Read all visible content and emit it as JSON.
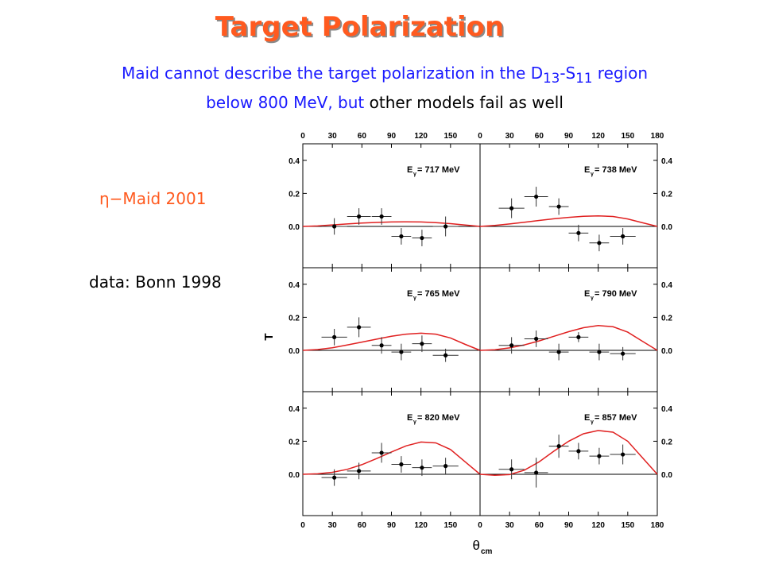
{
  "header": {
    "title": "Target Polarization",
    "line1_pre": "Maid cannot describe the target polarization in the D",
    "line1_sub1": "13",
    "line1_mid": "-S",
    "line1_sub2": "11",
    "line1_post": " region",
    "line2_blue": "below 800 MeV, but ",
    "line2_black": "other models fail as well"
  },
  "labels": {
    "maid": "η−Maid 2001",
    "data": "data: Bonn 1998"
  },
  "colors": {
    "title": "#ff5a1f",
    "blue_text": "#1a1aff",
    "maid_text": "#ff5a1f",
    "curve": "#e02020"
  },
  "chart_data": {
    "type": "scatter",
    "ylabel": "T",
    "xlabel": "θcm",
    "xlim": [
      0,
      180
    ],
    "ylim": [
      -0.25,
      0.5
    ],
    "x_ticks": [
      0,
      30,
      60,
      90,
      120,
      150,
      180
    ],
    "x_tick_labels_left": [
      "0",
      "30",
      "60",
      "90",
      "120",
      "150"
    ],
    "x_tick_labels_right": [
      "0",
      "30",
      "60",
      "90",
      "120",
      "150",
      "180"
    ],
    "y_ticks": [
      0.0,
      0.2,
      0.4
    ],
    "y_tick_labels": [
      "0.0",
      "0.2",
      "0.4"
    ],
    "energy_prefix": "E",
    "energy_sub": "γ",
    "panels": [
      {
        "label": " = 717 MeV",
        "points": [
          {
            "x": 32,
            "y": 0.0,
            "dx": 13,
            "dy": 0.05
          },
          {
            "x": 57,
            "y": 0.06,
            "dx": 12,
            "dy": 0.05
          },
          {
            "x": 80,
            "y": 0.06,
            "dx": 10,
            "dy": 0.05
          },
          {
            "x": 100,
            "y": -0.06,
            "dx": 10,
            "dy": 0.05
          },
          {
            "x": 121,
            "y": -0.07,
            "dx": 10,
            "dy": 0.05
          },
          {
            "x": 145,
            "y": 0.0,
            "dx": 13,
            "dy": 0.06
          }
        ],
        "curve": {
          "x": [
            0,
            15,
            30,
            45,
            60,
            75,
            90,
            105,
            120,
            135,
            150,
            165,
            180
          ],
          "y": [
            0,
            0.003,
            0.009,
            0.015,
            0.02,
            0.024,
            0.027,
            0.028,
            0.027,
            0.023,
            0.017,
            0.008,
            0
          ]
        }
      },
      {
        "label": " = 738 MeV",
        "points": [
          {
            "x": 32,
            "y": 0.11,
            "dx": 13,
            "dy": 0.06
          },
          {
            "x": 57,
            "y": 0.18,
            "dx": 12,
            "dy": 0.06
          },
          {
            "x": 80,
            "y": 0.12,
            "dx": 10,
            "dy": 0.05
          },
          {
            "x": 100,
            "y": -0.04,
            "dx": 10,
            "dy": 0.05
          },
          {
            "x": 121,
            "y": -0.1,
            "dx": 10,
            "dy": 0.05
          },
          {
            "x": 145,
            "y": -0.06,
            "dx": 13,
            "dy": 0.05
          }
        ],
        "curve": {
          "x": [
            0,
            15,
            30,
            45,
            60,
            75,
            90,
            105,
            120,
            135,
            150,
            165,
            180
          ],
          "y": [
            0,
            0.006,
            0.015,
            0.025,
            0.036,
            0.046,
            0.055,
            0.061,
            0.064,
            0.06,
            0.045,
            0.022,
            0
          ]
        }
      },
      {
        "label": " = 765 MeV",
        "points": [
          {
            "x": 32,
            "y": 0.08,
            "dx": 13,
            "dy": 0.05
          },
          {
            "x": 57,
            "y": 0.14,
            "dx": 12,
            "dy": 0.06
          },
          {
            "x": 80,
            "y": 0.03,
            "dx": 10,
            "dy": 0.05
          },
          {
            "x": 100,
            "y": -0.01,
            "dx": 10,
            "dy": 0.05
          },
          {
            "x": 121,
            "y": 0.04,
            "dx": 10,
            "dy": 0.05
          },
          {
            "x": 145,
            "y": -0.03,
            "dx": 13,
            "dy": 0.04
          }
        ],
        "curve": {
          "x": [
            0,
            15,
            30,
            45,
            60,
            75,
            90,
            105,
            120,
            135,
            150,
            165,
            180
          ],
          "y": [
            0,
            0.005,
            0.016,
            0.032,
            0.05,
            0.068,
            0.085,
            0.098,
            0.104,
            0.098,
            0.075,
            0.036,
            0
          ]
        }
      },
      {
        "label": " = 790 MeV",
        "points": [
          {
            "x": 32,
            "y": 0.03,
            "dx": 13,
            "dy": 0.05
          },
          {
            "x": 57,
            "y": 0.07,
            "dx": 12,
            "dy": 0.05
          },
          {
            "x": 80,
            "y": -0.01,
            "dx": 10,
            "dy": 0.05
          },
          {
            "x": 100,
            "y": 0.08,
            "dx": 10,
            "dy": 0.03
          },
          {
            "x": 121,
            "y": -0.01,
            "dx": 10,
            "dy": 0.05
          },
          {
            "x": 145,
            "y": -0.02,
            "dx": 13,
            "dy": 0.04
          }
        ],
        "curve": {
          "x": [
            0,
            15,
            30,
            45,
            60,
            75,
            90,
            105,
            120,
            135,
            150,
            165,
            180
          ],
          "y": [
            0,
            0.004,
            0.015,
            0.033,
            0.057,
            0.085,
            0.113,
            0.137,
            0.15,
            0.143,
            0.11,
            0.055,
            0
          ]
        }
      },
      {
        "label": " = 820 MeV",
        "points": [
          {
            "x": 32,
            "y": -0.02,
            "dx": 13,
            "dy": 0.05
          },
          {
            "x": 57,
            "y": 0.02,
            "dx": 12,
            "dy": 0.05
          },
          {
            "x": 80,
            "y": 0.13,
            "dx": 10,
            "dy": 0.06
          },
          {
            "x": 100,
            "y": 0.06,
            "dx": 10,
            "dy": 0.05
          },
          {
            "x": 121,
            "y": 0.04,
            "dx": 10,
            "dy": 0.05
          },
          {
            "x": 145,
            "y": 0.05,
            "dx": 13,
            "dy": 0.05
          }
        ],
        "curve": {
          "x": [
            0,
            15,
            30,
            45,
            60,
            75,
            90,
            105,
            120,
            135,
            150,
            165,
            180
          ],
          "y": [
            0,
            0.003,
            0.012,
            0.03,
            0.058,
            0.095,
            0.135,
            0.172,
            0.195,
            0.19,
            0.15,
            0.075,
            0
          ]
        }
      },
      {
        "label": " = 857 MeV",
        "points": [
          {
            "x": 32,
            "y": 0.03,
            "dx": 13,
            "dy": 0.06
          },
          {
            "x": 57,
            "y": 0.01,
            "dx": 12,
            "dy": 0.09
          },
          {
            "x": 80,
            "y": 0.17,
            "dx": 10,
            "dy": 0.07
          },
          {
            "x": 100,
            "y": 0.14,
            "dx": 10,
            "dy": 0.05
          },
          {
            "x": 121,
            "y": 0.11,
            "dx": 10,
            "dy": 0.05
          },
          {
            "x": 145,
            "y": 0.12,
            "dx": 13,
            "dy": 0.06
          }
        ],
        "curve": {
          "x": [
            0,
            15,
            30,
            45,
            60,
            75,
            90,
            105,
            120,
            135,
            150,
            165,
            180
          ],
          "y": [
            0,
            -0.006,
            -0.002,
            0.025,
            0.075,
            0.14,
            0.2,
            0.245,
            0.265,
            0.255,
            0.2,
            0.1,
            0
          ]
        }
      }
    ]
  }
}
